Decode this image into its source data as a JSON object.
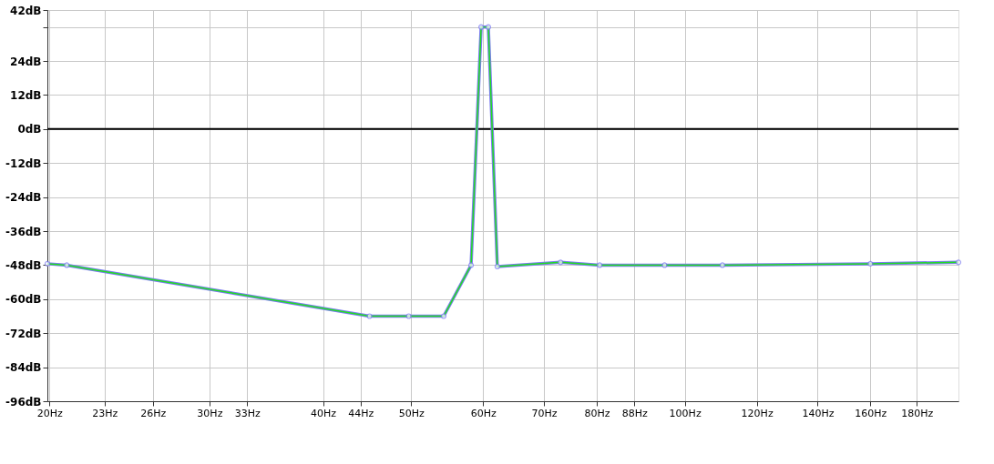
{
  "chart_data": {
    "type": "line",
    "x": [
      19.9,
      20.9,
      45.0,
      49.7,
      54.3,
      58.2,
      59.7,
      60.8,
      62.2,
      73.0,
      80.6,
      95.0,
      110.0,
      160.0,
      200.0
    ],
    "series": [
      {
        "color": "#7b7bef",
        "marker": "circle",
        "values": [
          -47.5,
          -48,
          -66,
          -66,
          -66,
          -48,
          36,
          36,
          -48.5,
          -47,
          -48,
          -48,
          -48,
          -47.5,
          -47
        ]
      },
      {
        "color": "#22dd22",
        "values": [
          -47.5,
          -48,
          -66,
          -66,
          -66,
          -48,
          36,
          36,
          -48.5,
          -47,
          -48,
          -48,
          -48,
          -47.5,
          -47
        ]
      }
    ],
    "log": "x",
    "xlim": [
      19.9,
      200
    ],
    "ylim": [
      -96,
      42
    ],
    "xticks": [
      {
        "value": 20,
        "label": "20Hz"
      },
      {
        "value": 23,
        "label": "23Hz"
      },
      {
        "value": 26,
        "label": "26Hz"
      },
      {
        "value": 30,
        "label": "30Hz"
      },
      {
        "value": 33,
        "label": "33Hz"
      },
      {
        "value": 40,
        "label": "40Hz"
      },
      {
        "value": 44,
        "label": "44Hz"
      },
      {
        "value": 50,
        "label": "50Hz"
      },
      {
        "value": 60,
        "label": "60Hz"
      },
      {
        "value": 70,
        "label": "70Hz"
      },
      {
        "value": 80,
        "label": "80Hz"
      },
      {
        "value": 88,
        "label": "88Hz"
      },
      {
        "value": 100,
        "label": "100Hz"
      },
      {
        "value": 120,
        "label": "120Hz"
      },
      {
        "value": 140,
        "label": "140Hz"
      },
      {
        "value": 160,
        "label": "160Hz"
      },
      {
        "value": 180,
        "label": "180Hz"
      }
    ],
    "yticks": [
      {
        "value": 42,
        "label": "42dB"
      },
      {
        "value": 36,
        "label": null
      },
      {
        "value": 24,
        "label": "24dB"
      },
      {
        "value": 12,
        "label": "12dB"
      },
      {
        "value": 0,
        "label": "0dB"
      },
      {
        "value": -12,
        "label": "-12dB"
      },
      {
        "value": -24,
        "label": "-24dB"
      },
      {
        "value": -36,
        "label": "-36dB"
      },
      {
        "value": -48,
        "label": "-48dB"
      },
      {
        "value": -60,
        "label": "-60dB"
      },
      {
        "value": -72,
        "label": "-72dB"
      },
      {
        "value": -84,
        "label": "-84dB"
      },
      {
        "value": -96,
        "label": "-96dB"
      }
    ],
    "ref_lines": [
      {
        "axis": "y",
        "value": 0,
        "color": "#000000"
      }
    ],
    "grid": true,
    "legend": false
  }
}
